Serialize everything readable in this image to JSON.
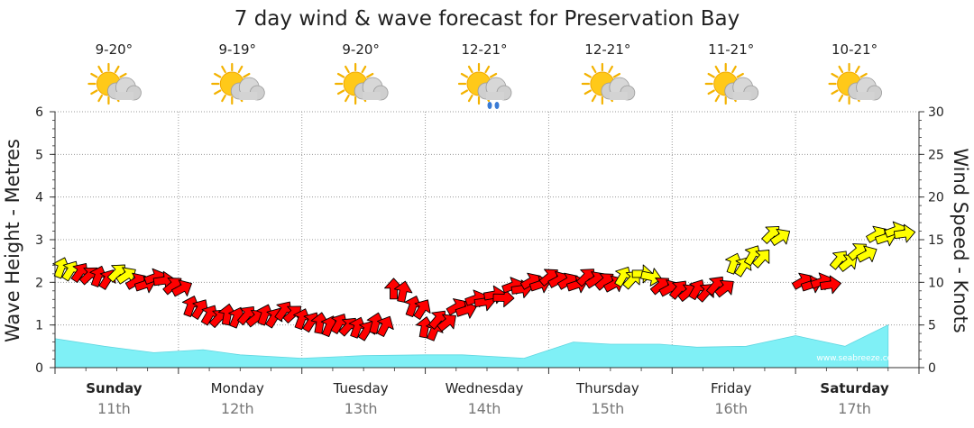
{
  "chart_data": {
    "type": "area",
    "title": "7 day wind & wave forecast for Preservation Bay",
    "ylabel_left": "Wave Height - Metres",
    "ylabel_right": "Wind Speed - Knots",
    "ylim_left": [
      0,
      6
    ],
    "ylim_right": [
      0,
      30
    ],
    "yticks_left": [
      "0",
      "1",
      "2",
      "3",
      "4",
      "5",
      "6"
    ],
    "yticks_right": [
      "0",
      "5",
      "10",
      "15",
      "20",
      "25",
      "30"
    ],
    "grid": true,
    "watermark": "www.seabreeze.com.au",
    "days": [
      {
        "name": "Sunday",
        "date": "11th",
        "temp": "9-20°",
        "icon": "sun-cloud-icon",
        "bold": true
      },
      {
        "name": "Monday",
        "date": "12th",
        "temp": "9-19°",
        "icon": "sun-cloud-icon",
        "bold": false
      },
      {
        "name": "Tuesday",
        "date": "13th",
        "temp": "9-20°",
        "icon": "sun-cloud-icon",
        "bold": false
      },
      {
        "name": "Wednesday",
        "date": "14th",
        "temp": "12-21°",
        "icon": "sun-cloud-rain-icon",
        "bold": false
      },
      {
        "name": "Thursday",
        "date": "15th",
        "temp": "12-21°",
        "icon": "sun-cloud-icon",
        "bold": false
      },
      {
        "name": "Friday",
        "date": "16th",
        "temp": "11-21°",
        "icon": "sun-cloud-icon",
        "bold": false
      },
      {
        "name": "Saturday",
        "date": "17th",
        "temp": "10-21°",
        "icon": "sun-cloud-icon",
        "bold": true
      }
    ],
    "wave_series": {
      "name": "Wave height",
      "color": "#7ff0f6",
      "x_days": [
        0,
        0.4,
        0.8,
        1.2,
        1.5,
        2.0,
        2.5,
        3.0,
        3.3,
        3.8,
        4.2,
        4.5,
        4.9,
        5.2,
        5.6,
        6.0,
        6.4,
        6.75
      ],
      "values": [
        0.68,
        0.5,
        0.35,
        0.42,
        0.3,
        0.22,
        0.28,
        0.3,
        0.3,
        0.22,
        0.6,
        0.55,
        0.55,
        0.48,
        0.5,
        0.75,
        0.5,
        1.0
      ]
    },
    "wind_series": {
      "name": "Wind",
      "colors": {
        "light": "#ffff00",
        "strong": "#ff0000"
      },
      "points": [
        {
          "day": 0.0,
          "knots": 11.5,
          "dir": 200,
          "color": "light"
        },
        {
          "day": 0.15,
          "knots": 11.0,
          "dir": 215,
          "color": "strong"
        },
        {
          "day": 0.3,
          "knots": 10.5,
          "dir": 200,
          "color": "strong"
        },
        {
          "day": 0.45,
          "knots": 11.0,
          "dir": 225,
          "color": "light"
        },
        {
          "day": 0.6,
          "knots": 10.0,
          "dir": 240,
          "color": "strong"
        },
        {
          "day": 0.75,
          "knots": 10.5,
          "dir": 250,
          "color": "strong"
        },
        {
          "day": 0.9,
          "knots": 9.5,
          "dir": 230,
          "color": "strong"
        },
        {
          "day": 1.05,
          "knots": 7.0,
          "dir": 200,
          "color": "strong"
        },
        {
          "day": 1.2,
          "knots": 6.0,
          "dir": 210,
          "color": "strong"
        },
        {
          "day": 1.35,
          "knots": 6.0,
          "dir": 190,
          "color": "strong"
        },
        {
          "day": 1.5,
          "knots": 6.0,
          "dir": 220,
          "color": "strong"
        },
        {
          "day": 1.65,
          "knots": 6.0,
          "dir": 200,
          "color": "strong"
        },
        {
          "day": 1.8,
          "knots": 6.5,
          "dir": 215,
          "color": "strong"
        },
        {
          "day": 1.95,
          "knots": 5.5,
          "dir": 200,
          "color": "strong"
        },
        {
          "day": 2.1,
          "knots": 5.0,
          "dir": 190,
          "color": "strong"
        },
        {
          "day": 2.25,
          "knots": 5.0,
          "dir": 210,
          "color": "strong"
        },
        {
          "day": 2.4,
          "knots": 4.5,
          "dir": 200,
          "color": "strong"
        },
        {
          "day": 2.55,
          "knots": 5.0,
          "dir": 195,
          "color": "strong"
        },
        {
          "day": 2.7,
          "knots": 9.0,
          "dir": 180,
          "color": "strong"
        },
        {
          "day": 2.85,
          "knots": 7.0,
          "dir": 200,
          "color": "strong"
        },
        {
          "day": 2.95,
          "knots": 4.5,
          "dir": 190,
          "color": "strong"
        },
        {
          "day": 3.05,
          "knots": 5.5,
          "dir": 220,
          "color": "strong"
        },
        {
          "day": 3.2,
          "knots": 7.0,
          "dir": 240,
          "color": "strong"
        },
        {
          "day": 3.35,
          "knots": 8.0,
          "dir": 250,
          "color": "strong"
        },
        {
          "day": 3.5,
          "knots": 8.5,
          "dir": 260,
          "color": "strong"
        },
        {
          "day": 3.65,
          "knots": 9.5,
          "dir": 250,
          "color": "strong"
        },
        {
          "day": 3.8,
          "knots": 10.0,
          "dir": 240,
          "color": "strong"
        },
        {
          "day": 3.95,
          "knots": 10.5,
          "dir": 230,
          "color": "strong"
        },
        {
          "day": 4.1,
          "knots": 10.0,
          "dir": 240,
          "color": "strong"
        },
        {
          "day": 4.25,
          "knots": 10.5,
          "dir": 225,
          "color": "strong"
        },
        {
          "day": 4.4,
          "knots": 10.0,
          "dir": 230,
          "color": "strong"
        },
        {
          "day": 4.55,
          "knots": 10.5,
          "dir": 210,
          "color": "light"
        },
        {
          "day": 4.7,
          "knots": 11.0,
          "dir": 270,
          "color": "light"
        },
        {
          "day": 4.85,
          "knots": 9.5,
          "dir": 230,
          "color": "strong"
        },
        {
          "day": 5.0,
          "knots": 9.0,
          "dir": 220,
          "color": "strong"
        },
        {
          "day": 5.15,
          "knots": 9.0,
          "dir": 210,
          "color": "strong"
        },
        {
          "day": 5.3,
          "knots": 9.5,
          "dir": 220,
          "color": "strong"
        },
        {
          "day": 5.45,
          "knots": 12.0,
          "dir": 200,
          "color": "light"
        },
        {
          "day": 5.6,
          "knots": 13.0,
          "dir": 210,
          "color": "light"
        },
        {
          "day": 5.75,
          "knots": 15.5,
          "dir": 225,
          "color": "light"
        },
        {
          "day": 6.0,
          "knots": 10.0,
          "dir": 240,
          "color": "strong"
        },
        {
          "day": 6.15,
          "knots": 10.0,
          "dir": 250,
          "color": "strong"
        },
        {
          "day": 6.3,
          "knots": 12.5,
          "dir": 220,
          "color": "light"
        },
        {
          "day": 6.45,
          "knots": 13.5,
          "dir": 230,
          "color": "light"
        },
        {
          "day": 6.6,
          "knots": 15.5,
          "dir": 240,
          "color": "light"
        },
        {
          "day": 6.75,
          "knots": 16.0,
          "dir": 250,
          "color": "light"
        }
      ]
    }
  }
}
